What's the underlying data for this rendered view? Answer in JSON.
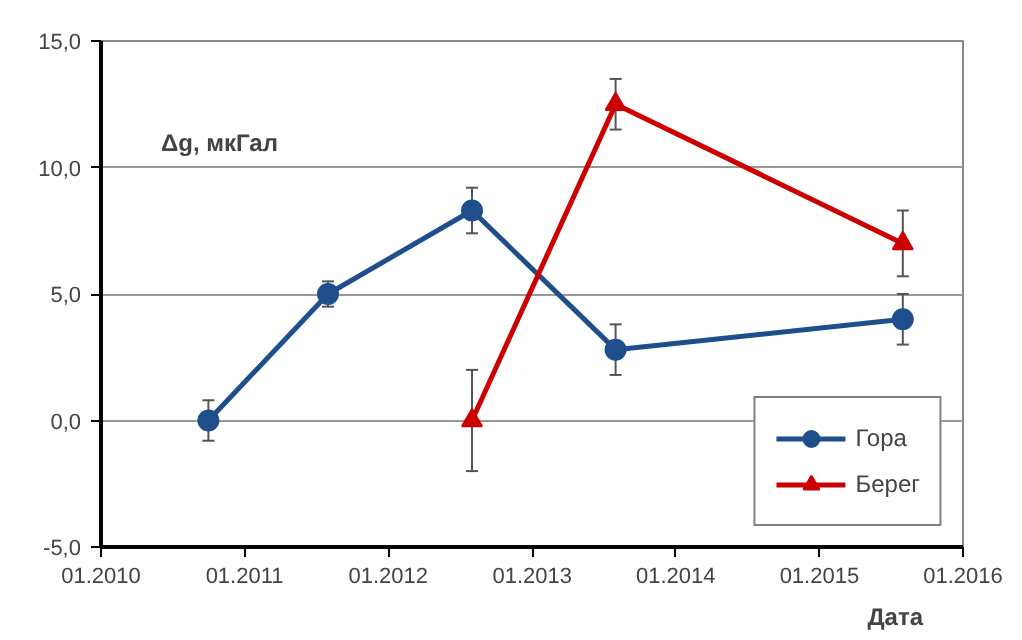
{
  "chart_data": {
    "type": "line",
    "xlabel": "Дата",
    "ylabel": "Δg, мкГал",
    "x": [
      "2010-10",
      "2011-08",
      "2012-08",
      "2013-08",
      "2015-08"
    ],
    "series": [
      {
        "name": "Гора",
        "color": "#1f4e8c",
        "marker": "circle",
        "values": [
          0.0,
          5.0,
          8.3,
          2.8,
          4.0
        ],
        "errors": [
          0.8,
          0.5,
          0.9,
          1.0,
          1.0
        ]
      },
      {
        "name": "Берег",
        "color": "#cc0000",
        "marker": "triangle",
        "x": [
          "2012-08",
          "2013-08",
          "2015-08"
        ],
        "values": [
          0.0,
          12.5,
          7.0
        ],
        "errors": [
          2.0,
          1.0,
          1.3
        ]
      }
    ],
    "xlim": [
      "2010-01",
      "2016-01"
    ],
    "xticks": [
      {
        "value": "2010-01",
        "label": "01.2010"
      },
      {
        "value": "2011-01",
        "label": "01.2011"
      },
      {
        "value": "2012-01",
        "label": "01.2012"
      },
      {
        "value": "2013-01",
        "label": "01.2013"
      },
      {
        "value": "2014-01",
        "label": "01.2014"
      },
      {
        "value": "2015-01",
        "label": "01.2015"
      },
      {
        "value": "2016-01",
        "label": "01.2016"
      }
    ],
    "ylim": [
      -5,
      15
    ],
    "yticks": [
      {
        "value": -5,
        "label": "-5,0"
      },
      {
        "value": 0,
        "label": "0,0"
      },
      {
        "value": 5,
        "label": "5,0"
      },
      {
        "value": 10,
        "label": "10,0"
      },
      {
        "value": 15,
        "label": "15,0"
      }
    ],
    "grid": "y",
    "legend": "bottom right",
    "line_style": "solid"
  }
}
